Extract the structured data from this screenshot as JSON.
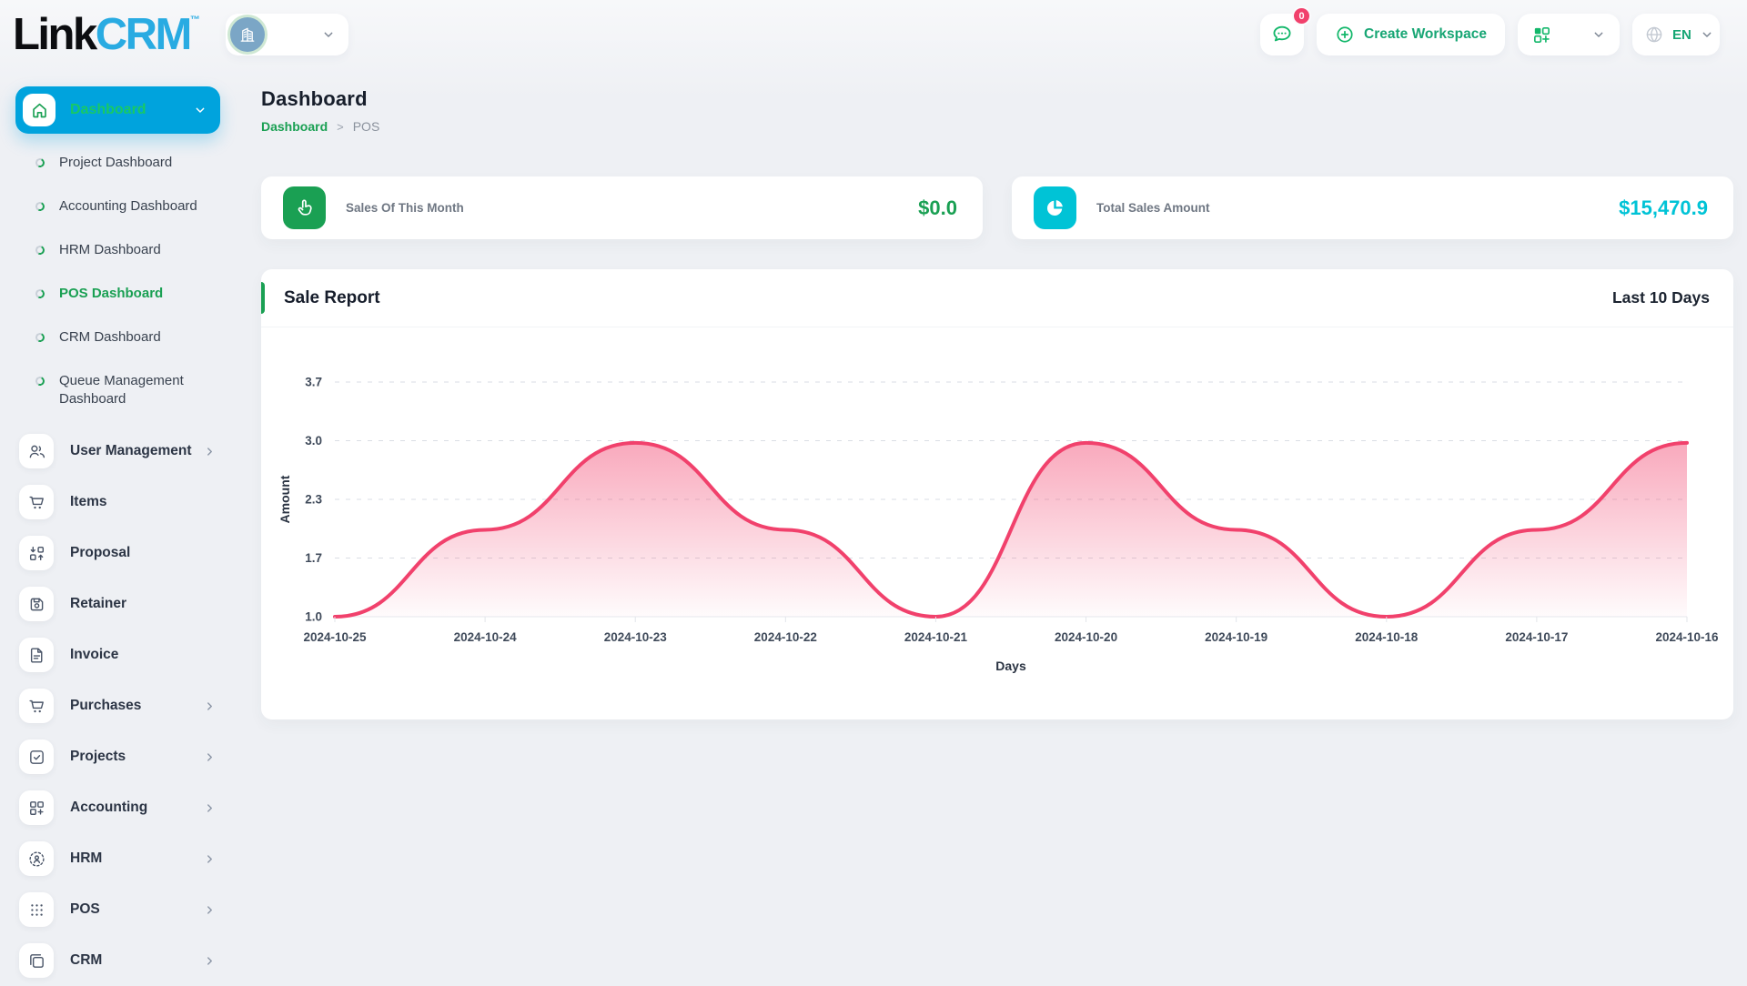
{
  "colors": {
    "primary_green": "#1aa053",
    "icon_green": "#12b76a",
    "brand_blue": "#29abe2",
    "active_menu_bg": "#00a3dd",
    "active_menu_text": "#18c964",
    "cyan": "#00c3d6",
    "pink": "#f1416c"
  },
  "brand": {
    "part_black": "Link",
    "part_blue": "CRM",
    "trademark": "™"
  },
  "topbar": {
    "chat_badge": "0",
    "create_workspace": "Create Workspace",
    "language": "EN"
  },
  "sidebar": {
    "active_label": "Dashboard",
    "dashboard_children": [
      {
        "label": "Project Dashboard",
        "active": false
      },
      {
        "label": "Accounting Dashboard",
        "active": false
      },
      {
        "label": "HRM Dashboard",
        "active": false
      },
      {
        "label": "POS Dashboard",
        "active": true
      },
      {
        "label": "CRM Dashboard",
        "active": false
      },
      {
        "label": "Queue Management Dashboard",
        "active": false
      }
    ],
    "items": [
      {
        "label": "User Management",
        "icon": "users-icon",
        "chevron": true
      },
      {
        "label": "Items",
        "icon": "cart-icon",
        "chevron": false
      },
      {
        "label": "Proposal",
        "icon": "proposal-icon",
        "chevron": false
      },
      {
        "label": "Retainer",
        "icon": "retainer-icon",
        "chevron": false
      },
      {
        "label": "Invoice",
        "icon": "invoice-icon",
        "chevron": false
      },
      {
        "label": "Purchases",
        "icon": "cart-icon",
        "chevron": true
      },
      {
        "label": "Projects",
        "icon": "projects-icon",
        "chevron": true
      },
      {
        "label": "Accounting",
        "icon": "accounting-icon",
        "chevron": true
      },
      {
        "label": "HRM",
        "icon": "hrm-icon",
        "chevron": true
      },
      {
        "label": "POS",
        "icon": "pos-icon",
        "chevron": true
      },
      {
        "label": "CRM",
        "icon": "crm-icon",
        "chevron": true
      }
    ]
  },
  "page": {
    "title": "Dashboard",
    "breadcrumb": [
      {
        "label": "Dashboard",
        "link": true
      },
      {
        "label": "POS",
        "link": false
      }
    ]
  },
  "stats": [
    {
      "label": "Sales Of This Month",
      "value": "$0.0",
      "accent": "#1aa053",
      "icon": "tap-icon"
    },
    {
      "label": "Total Sales Amount",
      "value": "$15,470.9",
      "accent": "#00c3d6",
      "icon": "pie-chart-icon"
    }
  ],
  "chart_card": {
    "title": "Sale Report",
    "range": "Last 10 Days"
  },
  "chart_data": {
    "type": "area",
    "title": "Sale Report",
    "x": [
      "2024-10-25",
      "2024-10-24",
      "2024-10-23",
      "2024-10-22",
      "2024-10-21",
      "2024-10-20",
      "2024-10-19",
      "2024-10-18",
      "2024-10-17",
      "2024-10-16"
    ],
    "series": [
      {
        "name": "Amount",
        "values": [
          1.0,
          2.0,
          3.0,
          2.0,
          1.0,
          3.0,
          2.0,
          1.0,
          2.0,
          3.0
        ]
      }
    ],
    "xlabel": "Days",
    "ylabel": "Amount",
    "ylim": [
      1.0,
      3.7
    ],
    "yticks": [
      {
        "v": 1.0,
        "label": "1.0"
      },
      {
        "v": 1.675,
        "label": "1.7"
      },
      {
        "v": 2.35,
        "label": "2.3"
      },
      {
        "v": 3.025,
        "label": "3.0"
      },
      {
        "v": 3.7,
        "label": "3.7"
      }
    ],
    "grid": "dashed-horizontal",
    "legend": "none",
    "curve": "smooth",
    "line_color": "#f1416c",
    "fill_gradient": {
      "from": "rgba(241,65,108,0.45)",
      "to": "rgba(241,65,108,0.02)"
    }
  }
}
